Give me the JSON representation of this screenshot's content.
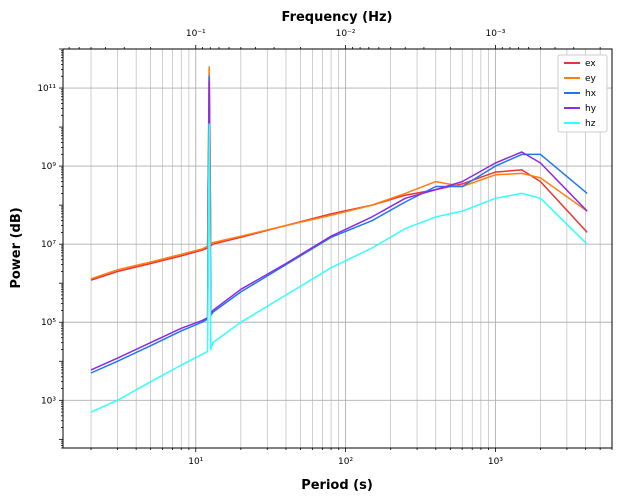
{
  "chart_data": {
    "type": "line",
    "xscale": "log",
    "yscale": "log",
    "xlabel": "Period (s)",
    "ylabel": "Power (dB)",
    "top_xlabel": "Frequency (Hz)",
    "xlim": [
      1.3,
      6000
    ],
    "ylim": [
      60,
      1000000000000.0
    ],
    "grid": true,
    "legend_position": "top-right",
    "x_ticks": [
      {
        "value": 10,
        "label": "10¹"
      },
      {
        "value": 100,
        "label": "10²"
      },
      {
        "value": 1000,
        "label": "10³"
      }
    ],
    "y_ticks": [
      {
        "value": 1000,
        "label": "10³"
      },
      {
        "value": 100000,
        "label": "10⁵"
      },
      {
        "value": 10000000,
        "label": "10⁷"
      },
      {
        "value": 1000000000,
        "label": "10⁹"
      },
      {
        "value": 100000000000,
        "label": "10¹¹"
      }
    ],
    "top_ticks": [
      {
        "period": 10,
        "label": "10⁻¹"
      },
      {
        "period": 100,
        "label": "10⁻²"
      },
      {
        "period": 1000,
        "label": "10⁻³"
      }
    ],
    "series": [
      {
        "name": "ex",
        "color": "#ee3333",
        "x": [
          2,
          3,
          5,
          8,
          11,
          12,
          12.3,
          12.6,
          13,
          20,
          40,
          80,
          150,
          250,
          400,
          600,
          1000,
          1500,
          2000,
          4096
        ],
        "y": [
          1200000.0,
          2000000.0,
          3200000.0,
          5000000.0,
          7000000.0,
          8000000.0,
          300000000000.0,
          9000000.0,
          10000000.0,
          15000000.0,
          30000000.0,
          60000000.0,
          100000000.0,
          180000000.0,
          250000000.0,
          350000000.0,
          700000000.0,
          800000000.0,
          400000000.0,
          20000000.0
        ]
      },
      {
        "name": "ey",
        "color": "#ff7f0e",
        "x": [
          2,
          3,
          5,
          8,
          11,
          12,
          12.3,
          12.6,
          13,
          20,
          40,
          80,
          150,
          250,
          400,
          600,
          1000,
          1500,
          2000,
          4096
        ],
        "y": [
          1300000.0,
          2200000.0,
          3500000.0,
          5500000.0,
          7500000.0,
          9000000.0,
          350000000000.0,
          10000000.0,
          11000000.0,
          16000000.0,
          30000000.0,
          55000000.0,
          100000000.0,
          200000000.0,
          400000000.0,
          300000000.0,
          600000000.0,
          650000000.0,
          500000000.0,
          70000000.0
        ]
      },
      {
        "name": "hx",
        "color": "#1f77f0",
        "x": [
          2,
          3,
          5,
          8,
          11,
          12,
          12.3,
          12.6,
          13,
          20,
          40,
          80,
          150,
          250,
          400,
          600,
          1000,
          1500,
          2000,
          4096
        ],
        "y": [
          5000.0,
          10000.0,
          25000.0,
          60000.0,
          100000.0,
          120000.0,
          200000000000.0,
          150000.0,
          180000.0,
          600000.0,
          3000000.0,
          15000000.0,
          40000000.0,
          120000000.0,
          300000000.0,
          300000000.0,
          1000000000.0,
          2000000000.0,
          2000000000.0,
          200000000.0
        ]
      },
      {
        "name": "hy",
        "color": "#8b2be2",
        "x": [
          2,
          3,
          5,
          8,
          11,
          12,
          12.3,
          12.6,
          13,
          20,
          40,
          80,
          150,
          250,
          400,
          600,
          1000,
          1500,
          2000,
          4096
        ],
        "y": [
          6000.0,
          12000.0,
          30000.0,
          70000.0,
          110000.0,
          130000.0,
          150000000000.0,
          160000.0,
          200000.0,
          700000.0,
          3200000.0,
          16000000.0,
          50000000.0,
          150000000.0,
          250000000.0,
          400000000.0,
          1200000000.0,
          2300000000.0,
          1200000000.0,
          70000000.0
        ]
      },
      {
        "name": "hz",
        "color": "#33ffff",
        "x": [
          2,
          3,
          5,
          8,
          11,
          12,
          12.3,
          12.6,
          13,
          20,
          40,
          80,
          150,
          250,
          400,
          600,
          1000,
          1500,
          2000,
          4096
        ],
        "y": [
          500,
          1000,
          3000,
          8000,
          15000.0,
          18000.0,
          12000000000.0,
          20000.0,
          30000.0,
          100000.0,
          500000.0,
          2500000.0,
          8000000.0,
          25000000.0,
          50000000.0,
          70000000.0,
          150000000.0,
          200000000.0,
          150000000.0,
          10000000.0
        ]
      }
    ]
  }
}
